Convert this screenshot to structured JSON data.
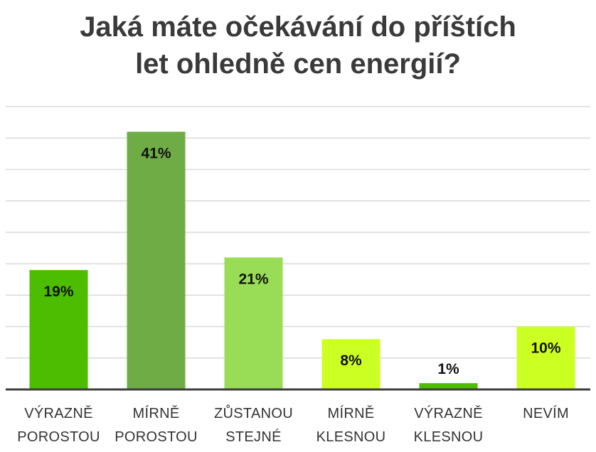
{
  "chart_data": {
    "type": "bar",
    "title_lines": [
      "Jaká máte očekávání do příštích",
      "let ohledně cen energií?"
    ],
    "categories": [
      [
        "VÝRAZNĚ",
        "POROSTOU"
      ],
      [
        "MÍRNĚ",
        "POROSTOU"
      ],
      [
        "ZŮSTANOU",
        "STEJNÉ"
      ],
      [
        "MÍRNĚ",
        "KLESNOU"
      ],
      [
        "VÝRAZNĚ",
        "KLESNOU"
      ],
      [
        "NEVÍM"
      ]
    ],
    "values": [
      19,
      41,
      21,
      8,
      1,
      10
    ],
    "value_labels": [
      "19%",
      "41%",
      "21%",
      "8%",
      "1%",
      "10%"
    ],
    "colors": [
      "#4cbd00",
      "#6fac46",
      "#98dd55",
      "#ccff22",
      "#4cbd00",
      "#ccff22"
    ],
    "ylim": [
      0,
      45
    ],
    "grid": true,
    "legend": "none"
  }
}
